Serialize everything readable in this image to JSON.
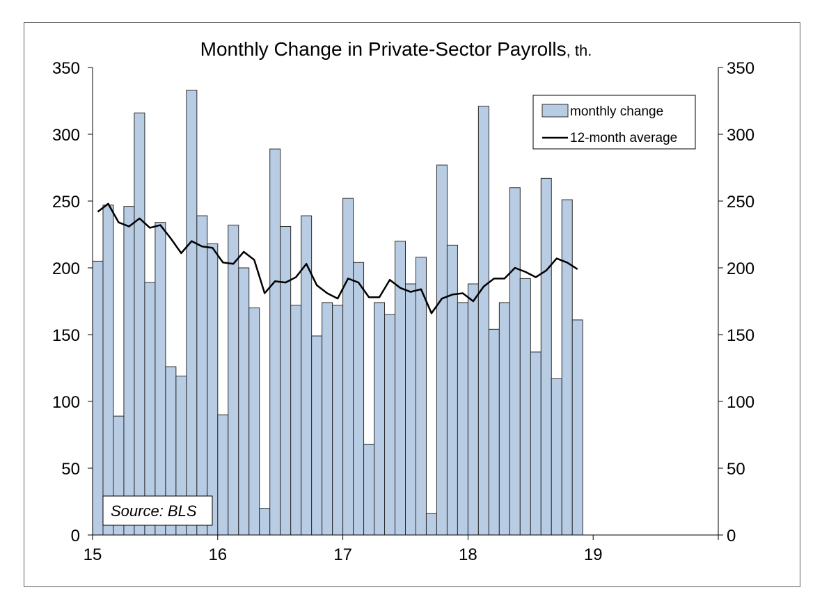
{
  "chart_data": {
    "type": "bar",
    "title": "Monthly Change in Private-Sector Payrolls",
    "title_unit": ", th.",
    "xlabel": "",
    "ylabel": "",
    "x_tick_labels": [
      "15",
      "16",
      "17",
      "18",
      "19"
    ],
    "x_range": [
      15,
      20
    ],
    "ylim": [
      0,
      350
    ],
    "y_ticks": [
      0,
      50,
      100,
      150,
      200,
      250,
      300,
      350
    ],
    "y_ticks_right": [
      0,
      50,
      100,
      150,
      200,
      250,
      300,
      350
    ],
    "grid": false,
    "legend_position": "top-right",
    "source_note": "Source: BLS",
    "series": [
      {
        "name": "monthly change",
        "type": "bar",
        "color": "#b8cce4",
        "edge_color": "#2b2b2b",
        "values": [
          205,
          247,
          89,
          246,
          316,
          189,
          234,
          126,
          119,
          333,
          239,
          218,
          90,
          232,
          200,
          170,
          20,
          289,
          231,
          172,
          239,
          149,
          174,
          172,
          252,
          204,
          68,
          174,
          165,
          220,
          188,
          208,
          16,
          277,
          217,
          174,
          188,
          321,
          154,
          174,
          260,
          192,
          137,
          267,
          117,
          251,
          161
        ]
      },
      {
        "name": "12-month average",
        "type": "line",
        "color": "#000000",
        "values": [
          242,
          248,
          234,
          231,
          237,
          230,
          232,
          222,
          211,
          220,
          216,
          215,
          204,
          203,
          212,
          206,
          181,
          190,
          189,
          193,
          203,
          187,
          181,
          177,
          192,
          189,
          178,
          178,
          191,
          185,
          182,
          184,
          166,
          177,
          180,
          181,
          175,
          186,
          192,
          192,
          200,
          197,
          193,
          198,
          207,
          204,
          199
        ]
      }
    ]
  }
}
